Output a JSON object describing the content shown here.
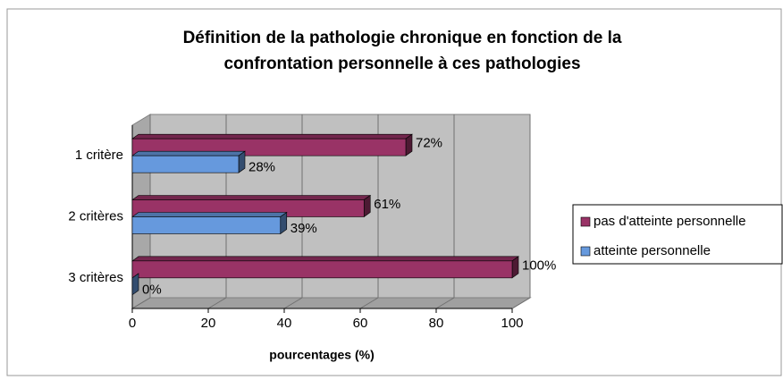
{
  "chart_data": {
    "type": "bar3d_horizontal",
    "title": [
      "Définition de la pathologie chronique en fonction de la",
      "confrontation personnelle à ces pathologies"
    ],
    "categories": [
      "1 critère",
      "2 critères",
      "3 critères"
    ],
    "series": [
      {
        "name": "pas d'atteinte personnelle",
        "color": "#993366",
        "values": [
          72,
          61,
          100
        ],
        "value_labels": [
          "72%",
          "61%",
          "100%"
        ]
      },
      {
        "name": "atteinte personnelle",
        "color": "#6699dd",
        "values": [
          28,
          39,
          0
        ],
        "value_labels": [
          "28%",
          "39%",
          "0%"
        ]
      }
    ],
    "xlabel": "pourcentages (%)",
    "xlim": [
      0,
      100
    ],
    "xticks": [
      0,
      20,
      40,
      60,
      80,
      100
    ],
    "grid": true,
    "legend": "right"
  }
}
